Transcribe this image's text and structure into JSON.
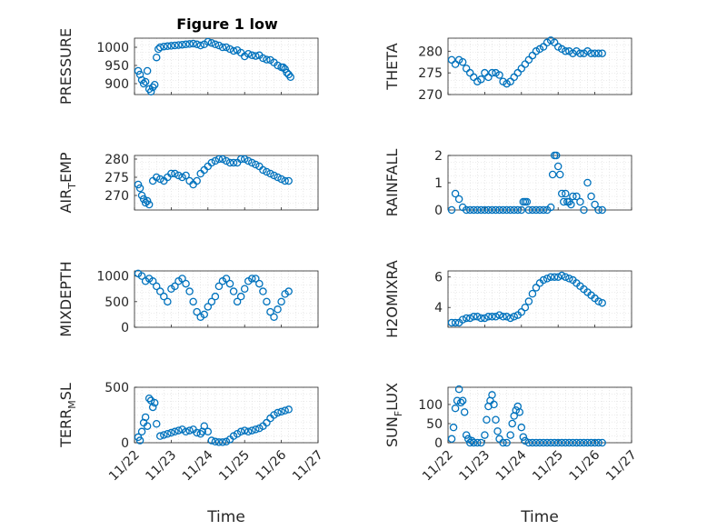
{
  "figure": {
    "title": "Figure 1 low"
  },
  "colors": {
    "marker": "#0072BD",
    "axis": "#262626",
    "grid": "#d9d9d9"
  },
  "x_ticks": [
    "11/22",
    "11/23",
    "11/24",
    "11/25",
    "11/26",
    "11/27"
  ],
  "xlabel": "Time",
  "chart_data": [
    {
      "type": "scatter",
      "panel": "pressure",
      "title": "Figure 1 low",
      "ylabel": "PRESSURE",
      "xlim": [
        0,
        5
      ],
      "ylim": [
        870,
        1025
      ],
      "yticks": [
        900,
        950,
        1000
      ],
      "x": [
        0.1,
        0.15,
        0.2,
        0.25,
        0.3,
        0.35,
        0.4,
        0.45,
        0.5,
        0.55,
        0.6,
        0.65,
        0.7,
        0.8,
        0.9,
        1.0,
        1.1,
        1.2,
        1.3,
        1.4,
        1.5,
        1.6,
        1.7,
        1.8,
        1.9,
        2.0,
        2.1,
        2.2,
        2.3,
        2.4,
        2.5,
        2.6,
        2.7,
        2.8,
        2.9,
        3.0,
        3.1,
        3.2,
        3.3,
        3.4,
        3.5,
        3.6,
        3.7,
        3.8,
        3.9,
        4.0,
        4.05,
        4.1,
        4.15,
        4.2,
        4.25
      ],
      "y": [
        935,
        925,
        910,
        900,
        905,
        935,
        885,
        878,
        890,
        897,
        972,
        995,
        1000,
        1002,
        1003,
        1004,
        1005,
        1006,
        1007,
        1008,
        1009,
        1010,
        1008,
        1005,
        1008,
        1015,
        1012,
        1008,
        1005,
        1000,
        1000,
        995,
        990,
        992,
        985,
        975,
        982,
        978,
        976,
        978,
        970,
        966,
        965,
        958,
        950,
        945,
        945,
        940,
        930,
        925,
        918
      ]
    },
    {
      "type": "scatter",
      "panel": "theta",
      "ylabel": "THETA",
      "xlim": [
        0,
        5
      ],
      "ylim": [
        270,
        283
      ],
      "yticks": [
        270,
        275,
        280
      ],
      "x": [
        0.1,
        0.2,
        0.3,
        0.4,
        0.5,
        0.6,
        0.7,
        0.8,
        0.9,
        1.0,
        1.1,
        1.2,
        1.3,
        1.4,
        1.5,
        1.6,
        1.7,
        1.8,
        1.9,
        2.0,
        2.1,
        2.2,
        2.3,
        2.4,
        2.5,
        2.6,
        2.7,
        2.8,
        2.9,
        3.0,
        3.1,
        3.2,
        3.3,
        3.4,
        3.5,
        3.6,
        3.7,
        3.8,
        3.9,
        4.0,
        4.1,
        4.2
      ],
      "y": [
        278,
        277,
        278,
        277.5,
        276,
        275,
        274,
        273,
        273.5,
        275,
        274,
        275,
        275,
        274.5,
        273,
        272.5,
        273,
        274,
        275,
        276,
        277,
        278,
        279,
        280,
        280.5,
        281,
        282,
        282.5,
        282,
        281,
        280.5,
        280,
        280,
        279.5,
        280,
        279.5,
        279.5,
        280,
        279.5,
        279.5,
        279.5,
        279.5
      ]
    },
    {
      "type": "scatter",
      "panel": "air_temp",
      "ylabel": "AIR_TEMP",
      "xlim": [
        0,
        5
      ],
      "ylim": [
        266,
        281
      ],
      "yticks": [
        270,
        275,
        280
      ],
      "x": [
        0.1,
        0.15,
        0.2,
        0.25,
        0.3,
        0.35,
        0.4,
        0.5,
        0.6,
        0.7,
        0.8,
        0.9,
        1.0,
        1.1,
        1.2,
        1.3,
        1.4,
        1.5,
        1.6,
        1.7,
        1.8,
        1.9,
        2.0,
        2.1,
        2.2,
        2.3,
        2.4,
        2.5,
        2.6,
        2.7,
        2.8,
        2.9,
        3.0,
        3.1,
        3.2,
        3.3,
        3.4,
        3.5,
        3.6,
        3.7,
        3.8,
        3.9,
        4.0,
        4.1,
        4.2
      ],
      "y": [
        273,
        272,
        270,
        269,
        268,
        268.5,
        267.5,
        274,
        275,
        274.5,
        274,
        275,
        276,
        276,
        275.5,
        275,
        275.5,
        274,
        273,
        274,
        276,
        277,
        278,
        279,
        279.5,
        280,
        280,
        279.5,
        279,
        279,
        279,
        280,
        280,
        279.5,
        279,
        278.5,
        278,
        277,
        276.5,
        276,
        275.5,
        275,
        274.5,
        274,
        274
      ]
    },
    {
      "type": "scatter",
      "panel": "rainfall",
      "ylabel": "RAINFALL",
      "xlim": [
        0,
        5
      ],
      "ylim": [
        0,
        2
      ],
      "yticks": [
        0,
        1,
        2
      ],
      "x": [
        0.1,
        0.2,
        0.3,
        0.4,
        0.5,
        0.6,
        0.7,
        0.8,
        0.9,
        1.0,
        1.1,
        1.2,
        1.3,
        1.4,
        1.5,
        1.6,
        1.7,
        1.8,
        1.9,
        2.0,
        2.05,
        2.1,
        2.15,
        2.2,
        2.3,
        2.4,
        2.5,
        2.6,
        2.7,
        2.8,
        2.85,
        2.9,
        2.95,
        3.0,
        3.05,
        3.1,
        3.15,
        3.2,
        3.25,
        3.3,
        3.35,
        3.4,
        3.5,
        3.6,
        3.7,
        3.8,
        3.9,
        4.0,
        4.1,
        4.2
      ],
      "y": [
        0,
        0.6,
        0.4,
        0.1,
        0,
        0,
        0,
        0,
        0,
        0,
        0,
        0,
        0,
        0,
        0,
        0,
        0,
        0,
        0,
        0,
        0.3,
        0.3,
        0.3,
        0,
        0,
        0,
        0,
        0,
        0,
        0.1,
        1.3,
        2.0,
        2.0,
        1.6,
        1.3,
        0.6,
        0.3,
        0.6,
        0.3,
        0.3,
        0.2,
        0.5,
        0.5,
        0.3,
        0,
        1.0,
        0.5,
        0.2,
        0,
        0
      ]
    },
    {
      "type": "scatter",
      "panel": "mixdepth",
      "ylabel": "MIXDEPTH",
      "xlim": [
        0,
        5
      ],
      "ylim": [
        0,
        1100
      ],
      "yticks": [
        0,
        500,
        1000
      ],
      "x": [
        0.1,
        0.2,
        0.3,
        0.4,
        0.5,
        0.6,
        0.7,
        0.8,
        0.9,
        1.0,
        1.1,
        1.2,
        1.3,
        1.4,
        1.5,
        1.6,
        1.7,
        1.8,
        1.9,
        2.0,
        2.1,
        2.2,
        2.3,
        2.4,
        2.5,
        2.6,
        2.7,
        2.8,
        2.9,
        3.0,
        3.1,
        3.2,
        3.3,
        3.4,
        3.5,
        3.6,
        3.7,
        3.8,
        3.9,
        4.0,
        4.1,
        4.2
      ],
      "y": [
        1050,
        1000,
        900,
        950,
        900,
        800,
        700,
        600,
        500,
        750,
        800,
        900,
        950,
        850,
        700,
        500,
        300,
        200,
        250,
        400,
        500,
        600,
        800,
        900,
        950,
        850,
        700,
        500,
        600,
        750,
        900,
        950,
        950,
        850,
        700,
        500,
        300,
        200,
        350,
        500,
        650,
        700
      ]
    },
    {
      "type": "scatter",
      "panel": "h2omixra",
      "ylabel": "H2OMIXRA",
      "xlim": [
        0,
        5
      ],
      "ylim": [
        2.7,
        6.4
      ],
      "yticks": [
        4,
        6
      ],
      "x": [
        0.1,
        0.2,
        0.3,
        0.4,
        0.5,
        0.6,
        0.7,
        0.8,
        0.9,
        1.0,
        1.1,
        1.2,
        1.3,
        1.4,
        1.5,
        1.6,
        1.7,
        1.8,
        1.9,
        2.0,
        2.1,
        2.2,
        2.3,
        2.4,
        2.5,
        2.6,
        2.7,
        2.8,
        2.9,
        3.0,
        3.1,
        3.2,
        3.3,
        3.4,
        3.5,
        3.6,
        3.7,
        3.8,
        3.9,
        4.0,
        4.1,
        4.2
      ],
      "y": [
        3.0,
        3.0,
        3.0,
        3.2,
        3.3,
        3.3,
        3.4,
        3.4,
        3.3,
        3.3,
        3.4,
        3.4,
        3.4,
        3.5,
        3.4,
        3.4,
        3.3,
        3.4,
        3.5,
        3.7,
        4.0,
        4.4,
        4.9,
        5.3,
        5.6,
        5.8,
        5.9,
        6.0,
        6.0,
        6.0,
        6.1,
        6.0,
        5.9,
        5.8,
        5.6,
        5.4,
        5.2,
        5.0,
        4.8,
        4.6,
        4.4,
        4.3
      ]
    },
    {
      "type": "scatter",
      "panel": "terr_msl",
      "ylabel": "TERR_MSL",
      "xlim": [
        0,
        5
      ],
      "ylim": [
        0,
        500
      ],
      "yticks": [
        0,
        500
      ],
      "x": [
        0.1,
        0.15,
        0.2,
        0.25,
        0.3,
        0.35,
        0.4,
        0.45,
        0.5,
        0.55,
        0.6,
        0.7,
        0.8,
        0.9,
        1.0,
        1.1,
        1.2,
        1.3,
        1.4,
        1.5,
        1.6,
        1.7,
        1.8,
        1.85,
        1.9,
        2.0,
        2.1,
        2.2,
        2.3,
        2.4,
        2.5,
        2.6,
        2.7,
        2.8,
        2.9,
        3.0,
        3.1,
        3.2,
        3.3,
        3.4,
        3.5,
        3.6,
        3.7,
        3.8,
        3.9,
        4.0,
        4.1,
        4.2
      ],
      "y": [
        50,
        20,
        100,
        180,
        230,
        150,
        400,
        380,
        320,
        360,
        170,
        60,
        70,
        80,
        90,
        100,
        110,
        120,
        100,
        110,
        120,
        90,
        80,
        100,
        150,
        100,
        20,
        10,
        5,
        5,
        10,
        30,
        60,
        80,
        100,
        110,
        100,
        110,
        120,
        130,
        150,
        180,
        220,
        250,
        270,
        280,
        290,
        300
      ]
    },
    {
      "type": "scatter",
      "panel": "sun_flux",
      "ylabel": "SUN_FLUX",
      "xlim": [
        0,
        5
      ],
      "ylim": [
        0,
        145
      ],
      "yticks": [
        0,
        50,
        100
      ],
      "x": [
        0.1,
        0.15,
        0.2,
        0.25,
        0.3,
        0.35,
        0.4,
        0.45,
        0.5,
        0.55,
        0.6,
        0.65,
        0.7,
        0.8,
        0.9,
        1.0,
        1.05,
        1.1,
        1.15,
        1.2,
        1.25,
        1.3,
        1.35,
        1.4,
        1.5,
        1.6,
        1.7,
        1.75,
        1.8,
        1.85,
        1.9,
        1.95,
        2.0,
        2.05,
        2.1,
        2.2,
        2.3,
        2.4,
        2.5,
        2.6,
        2.7,
        2.8,
        2.9,
        3.0,
        3.1,
        3.2,
        3.3,
        3.4,
        3.5,
        3.6,
        3.7,
        3.8,
        3.9,
        4.0,
        4.1,
        4.2
      ],
      "y": [
        10,
        40,
        90,
        110,
        140,
        105,
        110,
        80,
        20,
        10,
        0,
        5,
        0,
        0,
        0,
        20,
        60,
        95,
        110,
        125,
        100,
        60,
        30,
        10,
        0,
        0,
        20,
        50,
        70,
        85,
        95,
        80,
        40,
        15,
        5,
        0,
        0,
        0,
        0,
        0,
        0,
        0,
        0,
        0,
        0,
        0,
        0,
        0,
        0,
        0,
        0,
        0,
        0,
        0,
        0,
        0
      ]
    }
  ]
}
